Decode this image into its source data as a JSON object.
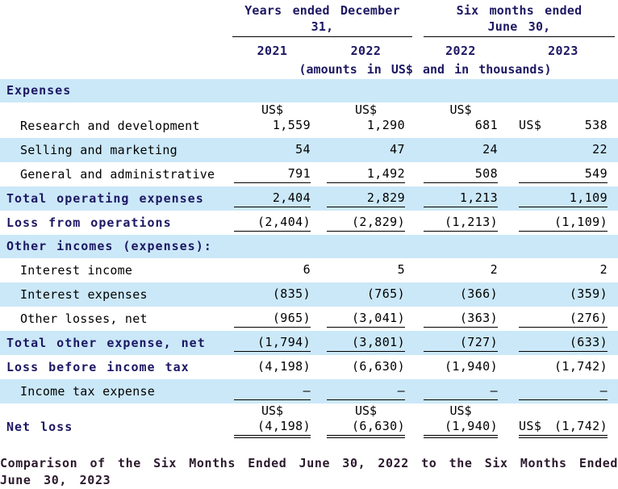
{
  "currency_label": "US$",
  "header": {
    "group1": "Years ended December 31,",
    "group2_line1": "Six months ended",
    "group2_line2": "June 30,",
    "years": [
      "2021",
      "2022",
      "2022",
      "2023"
    ],
    "note": "(amounts in US$ and in thousands)"
  },
  "table": {
    "rows": [
      {
        "label": "Expenses"
      },
      {
        "label": "Research and development",
        "values": [
          "1,559",
          "1,290",
          "681",
          "538"
        ]
      },
      {
        "label": "Selling and marketing",
        "values": [
          "54",
          "47",
          "24",
          "22"
        ]
      },
      {
        "label": "General and administrative",
        "values": [
          "791",
          "1,492",
          "508",
          "549"
        ]
      },
      {
        "label": "Total operating expenses",
        "values": [
          "2,404",
          "2,829",
          "1,213",
          "1,109"
        ]
      },
      {
        "label": "Loss from operations",
        "values": [
          "(2,404)",
          "(2,829)",
          "(1,213)",
          "(1,109)"
        ]
      },
      {
        "label": "Other incomes (expenses):"
      },
      {
        "label": "Interest income",
        "values": [
          "6",
          "5",
          "2",
          "2"
        ]
      },
      {
        "label": "Interest expenses",
        "values": [
          "(835)",
          "(765)",
          "(366)",
          "(359)"
        ]
      },
      {
        "label": "Other losses, net",
        "values": [
          "(965)",
          "(3,041)",
          "(363)",
          "(276)"
        ]
      },
      {
        "label": "Total other expense, net",
        "values": [
          "(1,794)",
          "(3,801)",
          "(727)",
          "(633)"
        ]
      },
      {
        "label": "Loss before income tax",
        "values": [
          "(4,198)",
          "(6,630)",
          "(1,940)",
          "(1,742)"
        ]
      },
      {
        "label": "Income tax expense",
        "values": [
          "—",
          "—",
          "—",
          "—"
        ]
      },
      {
        "label": "Net loss",
        "values": [
          "(4,198)",
          "(6,630)",
          "(1,940)",
          "(1,742)"
        ]
      }
    ]
  },
  "footer": {
    "line1": "Comparison of the Six Months Ended June 30, 2022 to the Six Months Ended",
    "line2": "June 30, 2023"
  }
}
